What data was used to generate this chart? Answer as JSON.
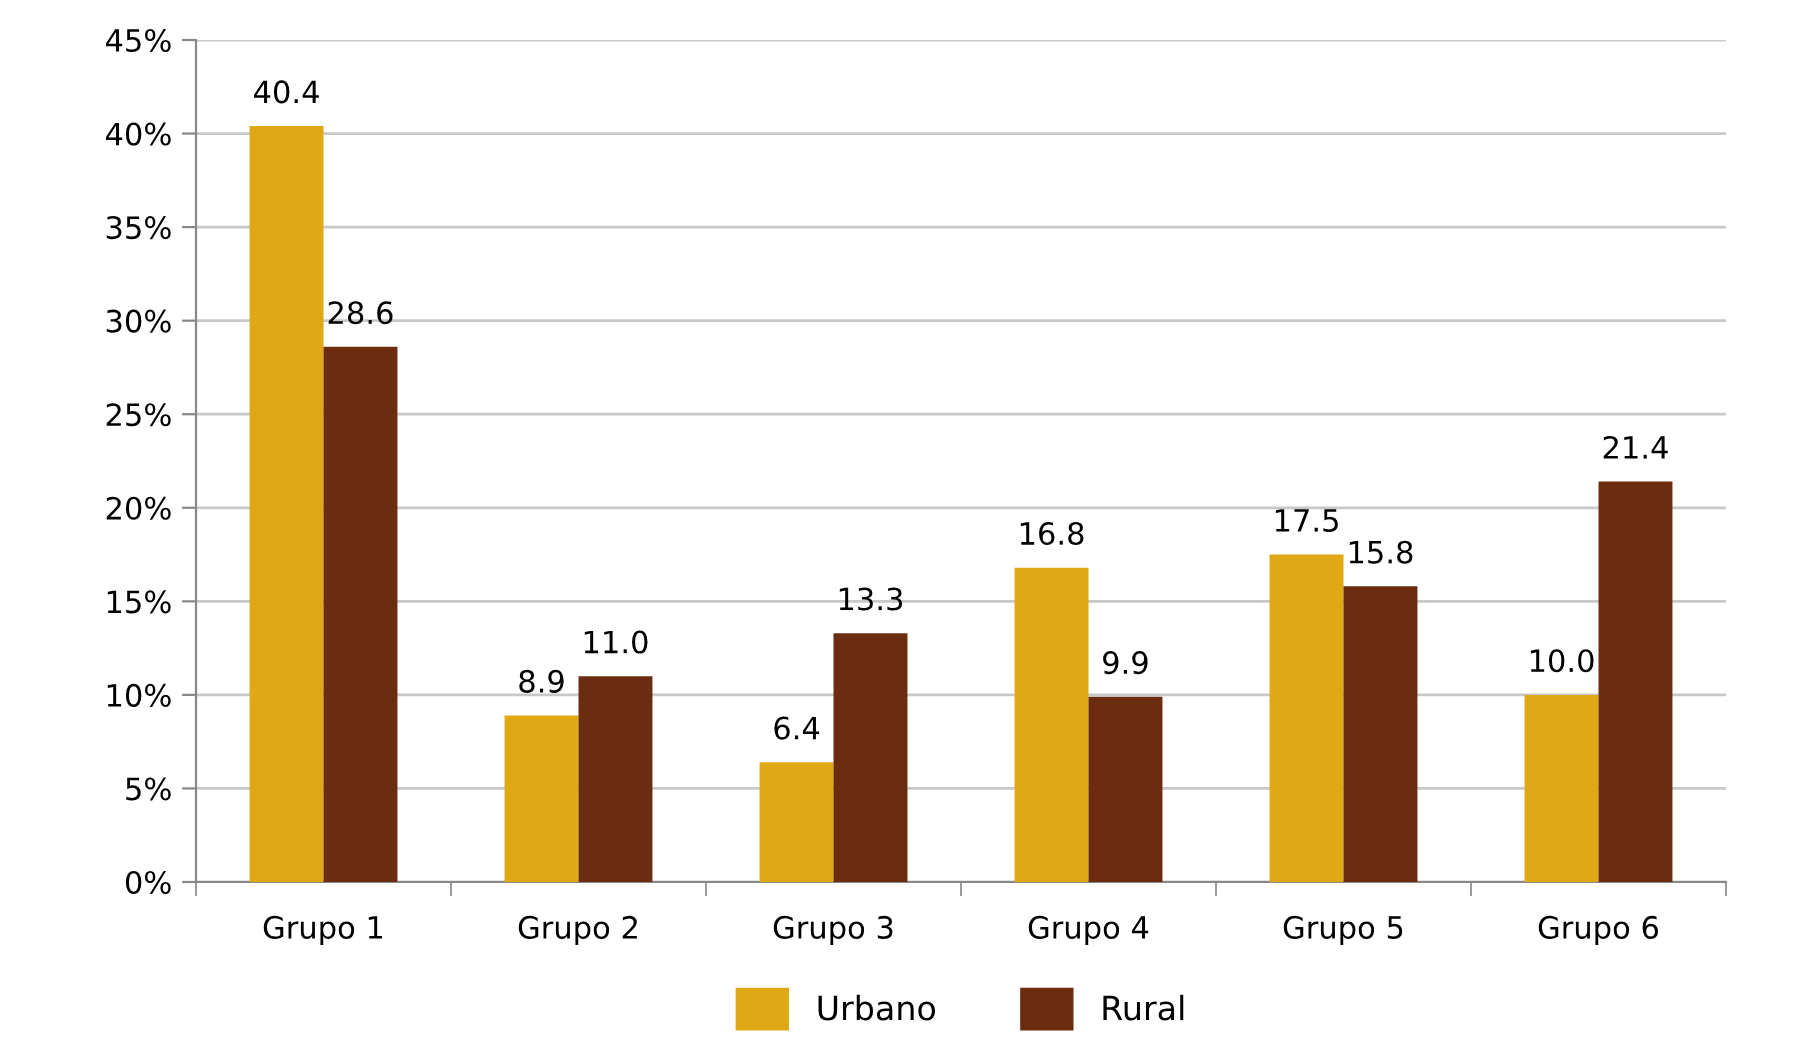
{
  "chart_data": {
    "type": "bar",
    "categories": [
      "Grupo 1",
      "Grupo 2",
      "Grupo 3",
      "Grupo 4",
      "Grupo 5",
      "Grupo 6"
    ],
    "series": [
      {
        "name": "Urbano",
        "color": "#e0a815",
        "values": [
          40.4,
          8.9,
          6.4,
          16.8,
          17.5,
          10.0
        ],
        "value_labels": [
          "40.4",
          "8.9",
          "6.4",
          "16.8",
          "17.5",
          "10.0"
        ]
      },
      {
        "name": "Rural",
        "color": "#6b2c10",
        "values": [
          28.6,
          11.0,
          13.3,
          9.9,
          15.8,
          21.4
        ],
        "value_labels": [
          "28.6",
          "11.0",
          "13.3",
          "9.9",
          "15.8",
          "21.4"
        ]
      }
    ],
    "ylim": [
      0,
      45
    ],
    "yticks": [
      {
        "value": 0,
        "label": "0%"
      },
      {
        "value": 5,
        "label": "5%"
      },
      {
        "value": 10,
        "label": "10%"
      },
      {
        "value": 15,
        "label": "15%"
      },
      {
        "value": 20,
        "label": "20%"
      },
      {
        "value": 25,
        "label": "25%"
      },
      {
        "value": 30,
        "label": "30%"
      },
      {
        "value": 35,
        "label": "35%"
      },
      {
        "value": 40,
        "label": "40%"
      },
      {
        "value": 45,
        "label": "45%"
      }
    ],
    "grid": "y",
    "legend": "bottom"
  }
}
